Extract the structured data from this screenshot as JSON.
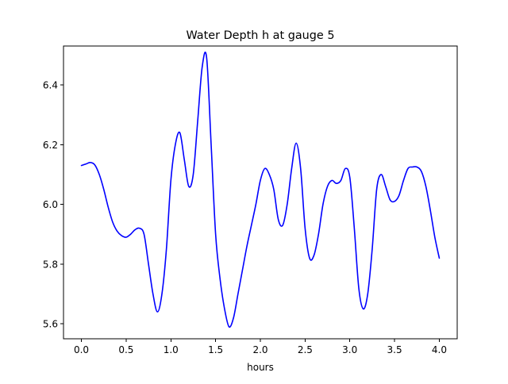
{
  "chart_data": {
    "type": "line",
    "title": "Water Depth h at gauge 5",
    "xlabel": "hours",
    "ylabel": "",
    "xlim": [
      -0.2,
      4.2
    ],
    "ylim": [
      5.55,
      6.53
    ],
    "xticks": [
      0.0,
      0.5,
      1.0,
      1.5,
      2.0,
      2.5,
      3.0,
      3.5,
      4.0
    ],
    "xtick_labels": [
      "0.0",
      "0.5",
      "1.0",
      "1.5",
      "2.0",
      "2.5",
      "3.0",
      "3.5",
      "4.0"
    ],
    "yticks": [
      5.6,
      5.8,
      6.0,
      6.2,
      6.4
    ],
    "ytick_labels": [
      "5.6",
      "5.8",
      "6.0",
      "6.2",
      "6.4"
    ],
    "grid": false,
    "legend": "none",
    "series": [
      {
        "color": "#0000ff",
        "x": [
          0.0,
          0.05,
          0.1,
          0.15,
          0.2,
          0.25,
          0.3,
          0.35,
          0.4,
          0.45,
          0.5,
          0.55,
          0.6,
          0.65,
          0.7,
          0.75,
          0.8,
          0.85,
          0.9,
          0.95,
          1.0,
          1.05,
          1.1,
          1.15,
          1.2,
          1.25,
          1.3,
          1.35,
          1.4,
          1.45,
          1.5,
          1.55,
          1.6,
          1.65,
          1.7,
          1.75,
          1.8,
          1.85,
          1.9,
          1.95,
          2.0,
          2.05,
          2.1,
          2.15,
          2.2,
          2.25,
          2.3,
          2.35,
          2.4,
          2.45,
          2.5,
          2.55,
          2.6,
          2.65,
          2.7,
          2.75,
          2.8,
          2.85,
          2.9,
          2.95,
          3.0,
          3.05,
          3.1,
          3.15,
          3.2,
          3.25,
          3.3,
          3.35,
          3.4,
          3.45,
          3.5,
          3.55,
          3.6,
          3.65,
          3.7,
          3.75,
          3.8,
          3.85,
          3.9,
          3.95,
          4.0
        ],
        "y": [
          6.13,
          6.135,
          6.14,
          6.132,
          6.1,
          6.05,
          5.99,
          5.94,
          5.91,
          5.895,
          5.89,
          5.9,
          5.915,
          5.92,
          5.9,
          5.8,
          5.7,
          5.64,
          5.7,
          5.85,
          6.08,
          6.2,
          6.24,
          6.15,
          6.06,
          6.1,
          6.28,
          6.46,
          6.49,
          6.2,
          5.9,
          5.75,
          5.65,
          5.59,
          5.62,
          5.7,
          5.78,
          5.86,
          5.93,
          6.0,
          6.08,
          6.12,
          6.1,
          6.05,
          5.95,
          5.93,
          6.0,
          6.12,
          6.205,
          6.12,
          5.92,
          5.82,
          5.83,
          5.9,
          6.0,
          6.06,
          6.08,
          6.07,
          6.08,
          6.12,
          6.09,
          5.92,
          5.72,
          5.65,
          5.7,
          5.85,
          6.05,
          6.1,
          6.06,
          6.015,
          6.01,
          6.03,
          6.08,
          6.12,
          6.125,
          6.125,
          6.11,
          6.06,
          5.98,
          5.89,
          5.82
        ]
      }
    ]
  }
}
